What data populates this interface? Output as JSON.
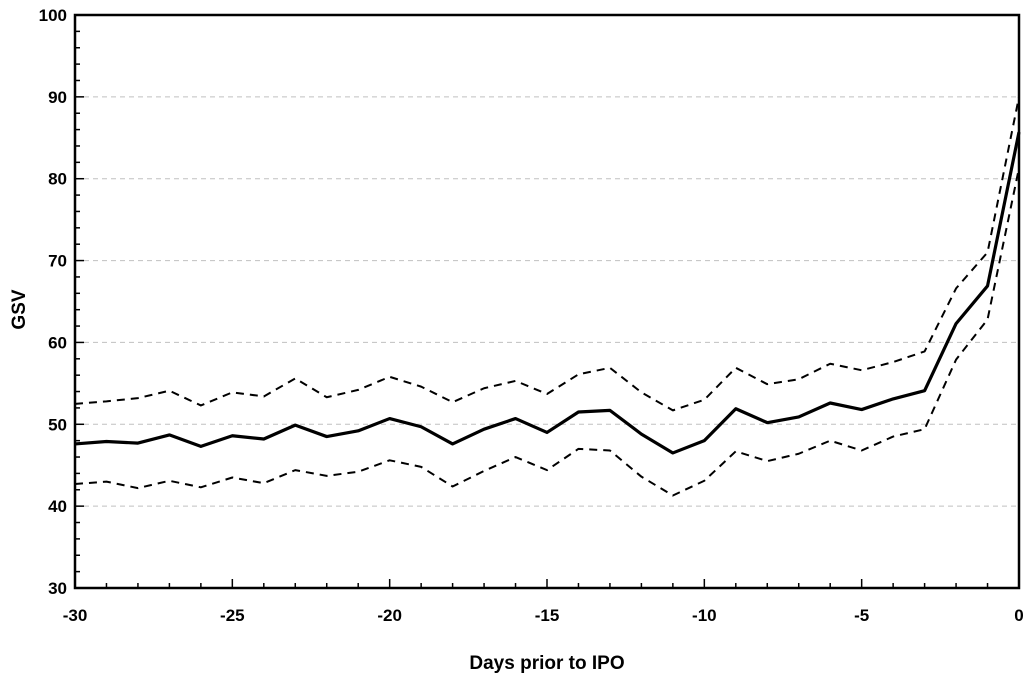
{
  "chart_data": {
    "type": "line",
    "title": "",
    "xlabel": "Days prior to IPO",
    "ylabel": "GSV",
    "xlim": [
      -30,
      0
    ],
    "ylim": [
      30,
      100
    ],
    "x_ticks": [
      -30,
      -25,
      -20,
      -15,
      -10,
      -5,
      0
    ],
    "y_ticks": [
      30,
      40,
      50,
      60,
      70,
      80,
      90,
      100
    ],
    "x_tick_labels": [
      "-30",
      "-25",
      "-20",
      "-15",
      "-10",
      "-5",
      "0"
    ],
    "y_tick_labels": [
      "30",
      "40",
      "50",
      "60",
      "70",
      "80",
      "90",
      "100"
    ],
    "grid": "horizontal dashed",
    "legend": "none",
    "x": [
      -30,
      -29,
      -28,
      -27,
      -26,
      -25,
      -24,
      -23,
      -22,
      -21,
      -20,
      -19,
      -18,
      -17,
      -16,
      -15,
      -14,
      -13,
      -12,
      -11,
      -10,
      -9,
      -8,
      -7,
      -6,
      -5,
      -4,
      -3,
      -2,
      -1,
      0
    ],
    "series": [
      {
        "style": "solid",
        "color": "#000000",
        "values": [
          47.6,
          47.9,
          47.7,
          48.7,
          47.3,
          48.6,
          48.2,
          49.9,
          48.5,
          49.2,
          50.7,
          49.7,
          47.6,
          49.4,
          50.7,
          49.0,
          51.5,
          51.7,
          48.8,
          46.5,
          48.0,
          51.9,
          50.2,
          50.9,
          52.6,
          51.8,
          53.1,
          54.1,
          62.3,
          66.9,
          85.7
        ]
      },
      {
        "style": "dashed",
        "color": "#000000",
        "values": [
          52.5,
          52.8,
          53.2,
          54.1,
          52.3,
          53.9,
          53.4,
          55.6,
          53.3,
          54.2,
          55.8,
          54.6,
          52.7,
          54.4,
          55.3,
          53.7,
          56.1,
          56.9,
          53.9,
          51.7,
          53.0,
          56.9,
          54.9,
          55.5,
          57.4,
          56.6,
          57.6,
          58.9,
          66.6,
          71.0,
          90.0
        ]
      },
      {
        "style": "dashed",
        "color": "#000000",
        "values": [
          42.7,
          43.0,
          42.2,
          43.1,
          42.3,
          43.5,
          42.8,
          44.4,
          43.7,
          44.2,
          45.6,
          44.8,
          42.4,
          44.3,
          46.0,
          44.4,
          47.0,
          46.8,
          43.6,
          41.3,
          43.1,
          46.7,
          45.5,
          46.4,
          48.0,
          46.8,
          48.5,
          49.4,
          57.9,
          62.8,
          81.3
        ]
      }
    ]
  }
}
